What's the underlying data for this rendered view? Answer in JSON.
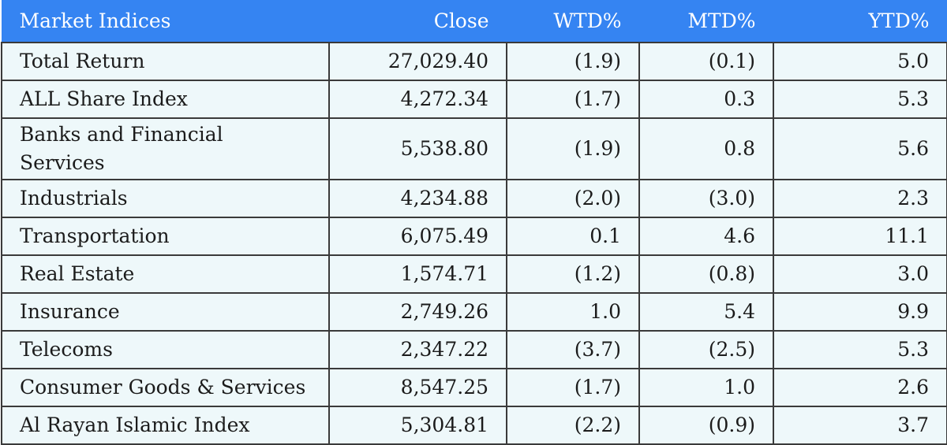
{
  "table": {
    "header": [
      "Market Indices",
      "Close",
      "WTD%",
      "MTD%",
      "YTD%"
    ],
    "rows": [
      [
        "Total Return",
        "27,029.40",
        "(1.9)",
        "(0.1)",
        "5.0"
      ],
      [
        "ALL Share Index",
        "4,272.34",
        "(1.7)",
        "0.3",
        "5.3"
      ],
      [
        "Banks and Financial Services",
        "5,538.80",
        "(1.9)",
        "0.8",
        "5.6"
      ],
      [
        "Industrials",
        "4,234.88",
        "(2.0)",
        "(3.0)",
        "2.3"
      ],
      [
        "Transportation",
        "6,075.49",
        "0.1",
        "4.6",
        "11.1"
      ],
      [
        "Real Estate",
        "1,574.71",
        "(1.2)",
        "(0.8)",
        "3.0"
      ],
      [
        "Insurance",
        "2,749.26",
        "1.0",
        "5.4",
        "9.9"
      ],
      [
        "Telecoms",
        "2,347.22",
        "(3.7)",
        "(2.5)",
        "5.3"
      ],
      [
        "Consumer Goods & Services",
        "8,547.25",
        "(1.7)",
        "1.0",
        "2.6"
      ],
      [
        "Al Rayan Islamic Index",
        "5,304.81",
        "(2.2)",
        "(0.9)",
        "3.7"
      ]
    ]
  }
}
